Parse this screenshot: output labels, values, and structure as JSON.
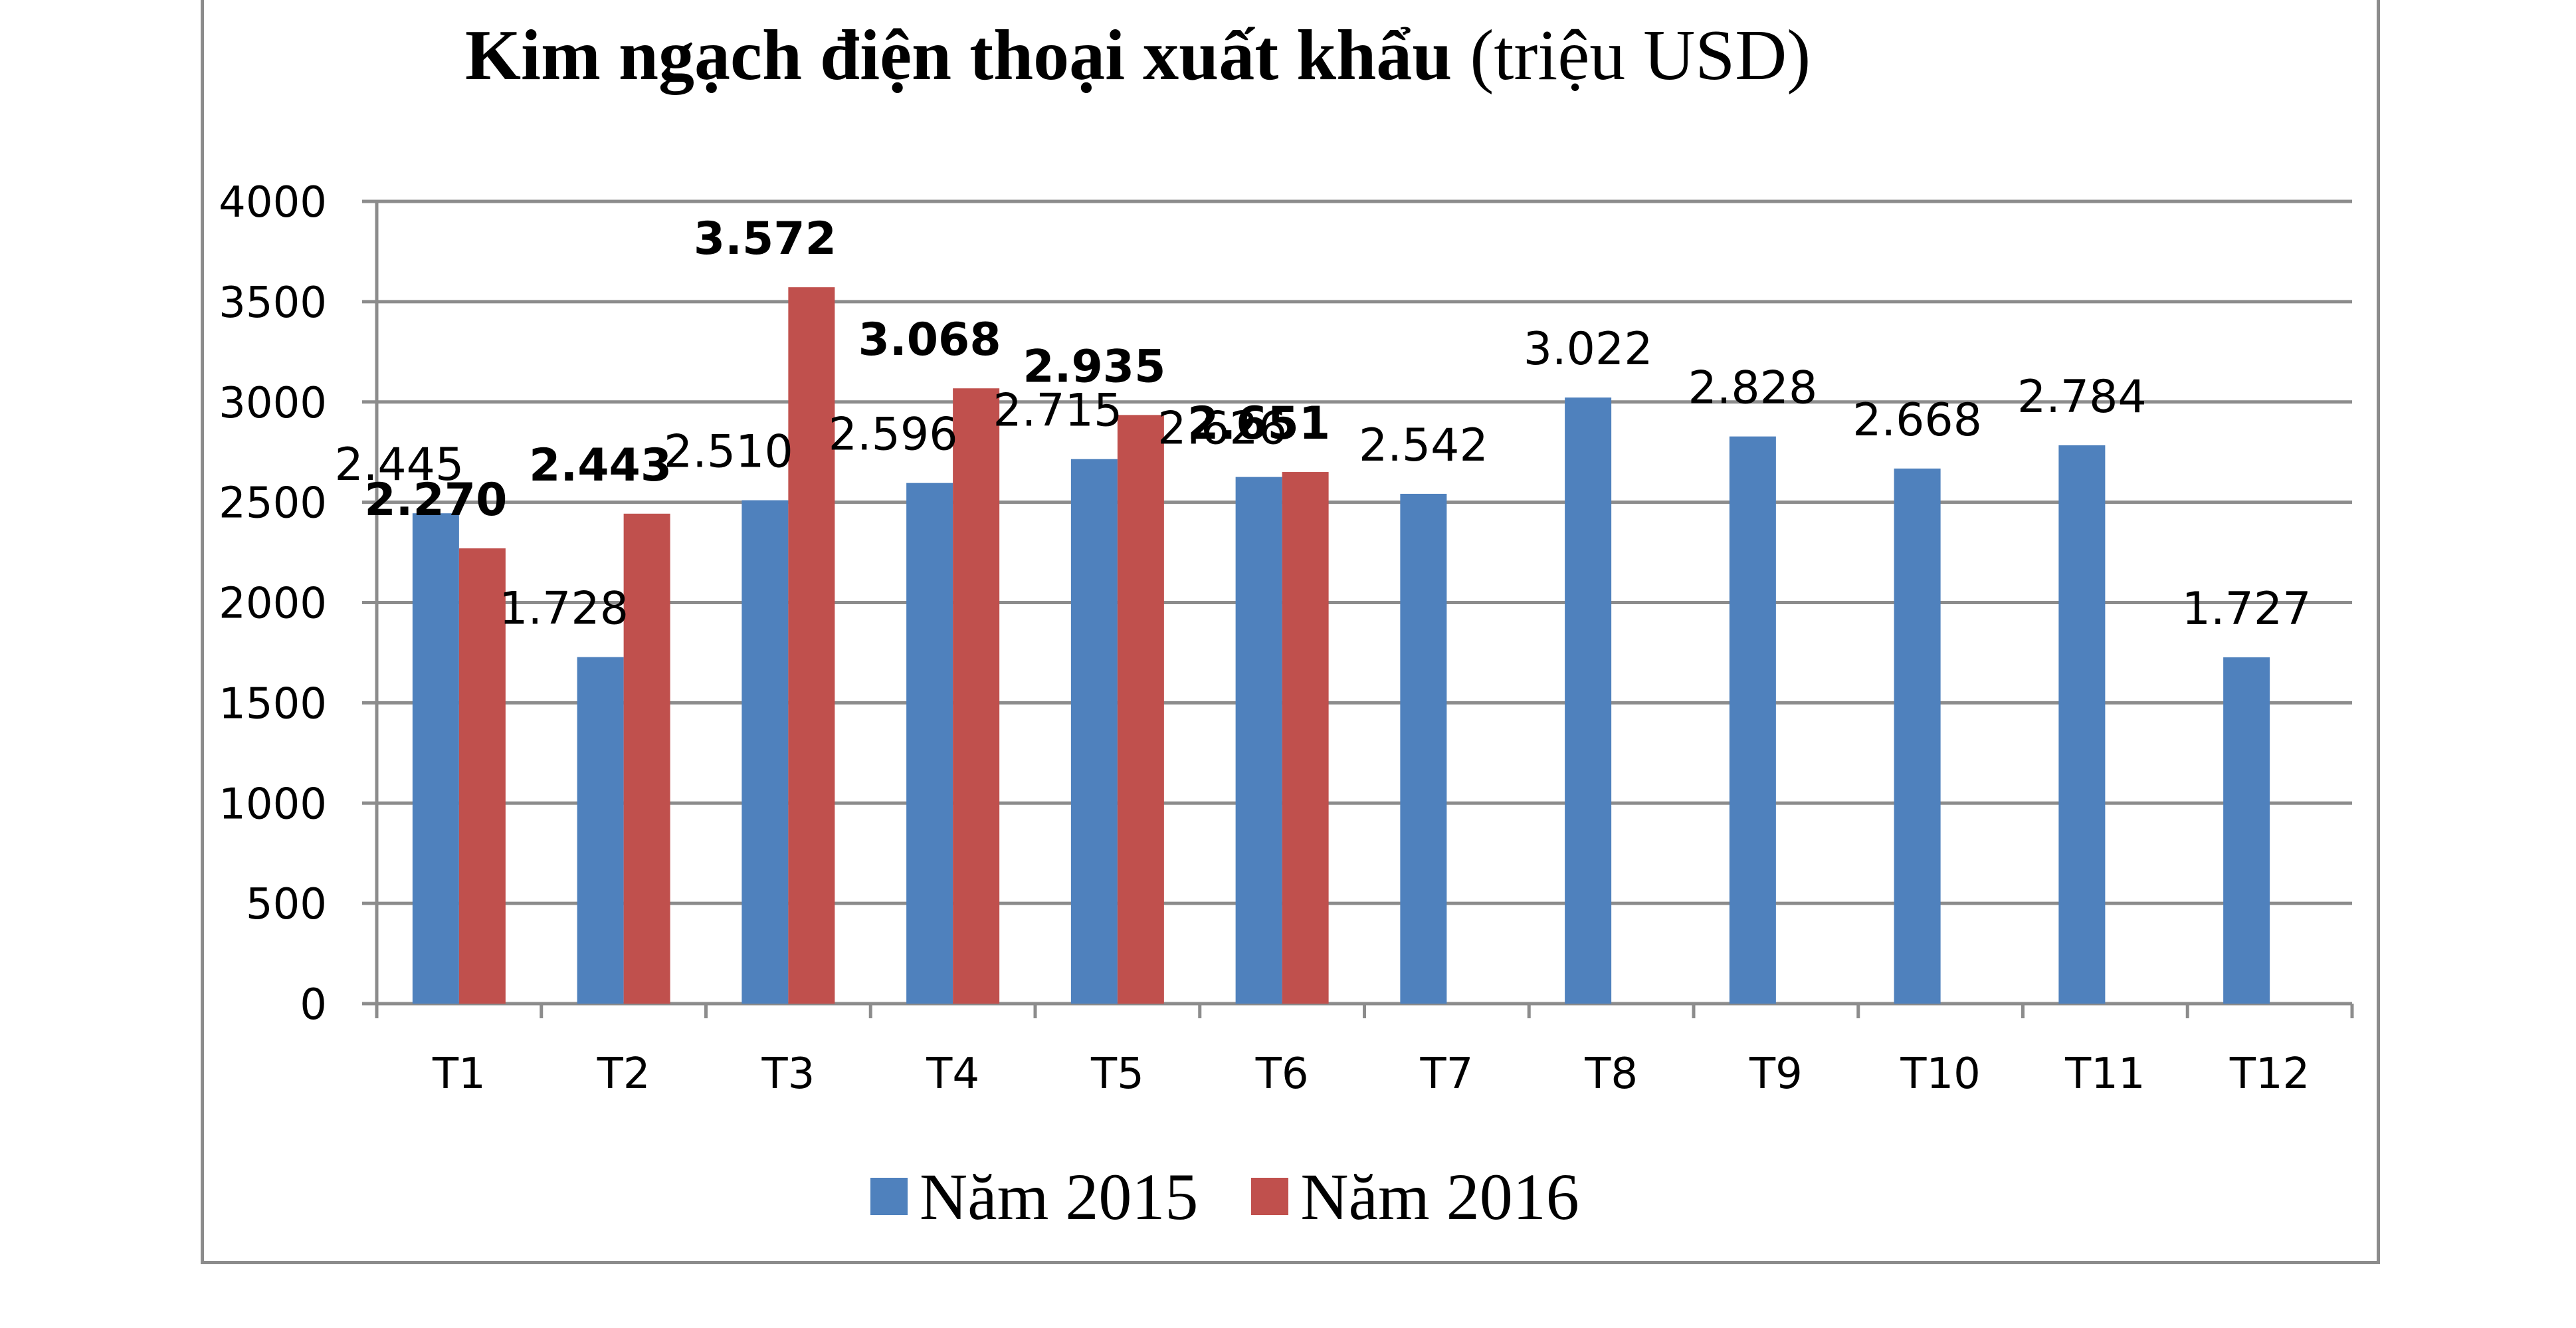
{
  "title": {
    "bold": "Kim ngạch điện thoại xuất khẩu",
    "normal": "(triệu USD)"
  },
  "colors": {
    "nam2015": "#4f81bd",
    "nam2016": "#c0504d",
    "grid": "#8c8c8c"
  },
  "chart_data": {
    "type": "bar",
    "title": "Kim ngạch điện thoại xuất khẩu (triệu USD)",
    "categories": [
      "T1",
      "T2",
      "T3",
      "T4",
      "T5",
      "T6",
      "T7",
      "T8",
      "T9",
      "T10",
      "T11",
      "T12"
    ],
    "ylim": [
      0,
      4000
    ],
    "yticks": [
      0,
      500,
      1000,
      1500,
      2000,
      2500,
      3000,
      3500,
      4000
    ],
    "grid": true,
    "legend_position": "bottom",
    "series": [
      {
        "name": "Năm 2015",
        "values": [
          2445,
          1728,
          2510,
          2596,
          2715,
          2626,
          2542,
          3022,
          2828,
          2668,
          2784,
          1727
        ],
        "labels": [
          "2.445",
          "1.728",
          "2.510",
          "2.596",
          "2.715",
          "2.626",
          "2.542",
          "3.022",
          "2.828",
          "2.668",
          "2.784",
          "1.727"
        ]
      },
      {
        "name": "Năm 2016",
        "values": [
          2270,
          2443,
          3572,
          3068,
          2935,
          2651,
          null,
          null,
          null,
          null,
          null,
          null
        ],
        "labels": [
          "2.270",
          "2.443",
          "3.572",
          "3.068",
          "2.935",
          "2.651",
          null,
          null,
          null,
          null,
          null,
          null
        ]
      }
    ]
  }
}
